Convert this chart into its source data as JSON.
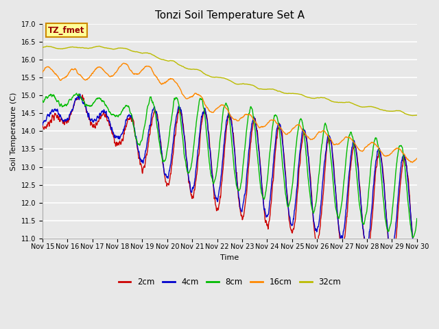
{
  "title": "Tonzi Soil Temperature Set A",
  "xlabel": "Time",
  "ylabel": "Soil Temperature (C)",
  "ylim": [
    11.0,
    17.0
  ],
  "yticks": [
    11.0,
    11.5,
    12.0,
    12.5,
    13.0,
    13.5,
    14.0,
    14.5,
    15.0,
    15.5,
    16.0,
    16.5,
    17.0
  ],
  "xtick_labels": [
    "Nov 15",
    "Nov 16",
    "Nov 17",
    "Nov 18",
    "Nov 19",
    "Nov 20",
    "Nov 21",
    "Nov 22",
    "Nov 23",
    "Nov 24",
    "Nov 25",
    "Nov 26",
    "Nov 27",
    "Nov 28",
    "Nov 29",
    "Nov 30"
  ],
  "legend_labels": [
    "2cm",
    "4cm",
    "8cm",
    "16cm",
    "32cm"
  ],
  "line_colors": [
    "#cc0000",
    "#0000cc",
    "#00bb00",
    "#ff8800",
    "#bbbb00"
  ],
  "annotation_text": "TZ_fmet",
  "annotation_box_color": "#ffff99",
  "annotation_border_color": "#cc8800",
  "background_color": "#e8e8e8",
  "plot_bg_color": "#e8e8e8",
  "grid_color": "#ffffff",
  "n_points": 1440,
  "days": 15
}
